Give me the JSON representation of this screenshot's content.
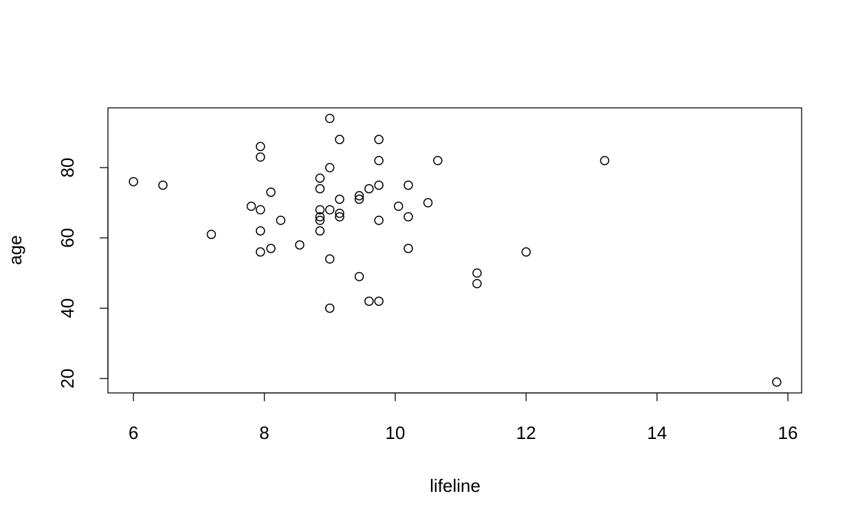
{
  "chart_data": {
    "type": "scatter",
    "xlabel": "lifeline",
    "ylabel": "age",
    "color": "#000000",
    "x": [
      6.0,
      6.45,
      7.19,
      7.8,
      7.94,
      7.94,
      7.94,
      7.94,
      7.94,
      8.1,
      8.1,
      8.25,
      8.54,
      8.85,
      8.85,
      8.85,
      8.85,
      8.85,
      8.85,
      9.0,
      9.0,
      9.0,
      9.0,
      9.0,
      9.15,
      9.15,
      9.15,
      9.15,
      9.45,
      9.45,
      9.45,
      9.6,
      9.6,
      9.75,
      9.75,
      9.75,
      9.75,
      9.75,
      10.05,
      10.2,
      10.2,
      10.2,
      10.5,
      10.65,
      11.25,
      11.25,
      12.0,
      13.2,
      15.83
    ],
    "values": [
      76,
      75,
      61,
      69,
      86,
      83,
      68,
      62,
      56,
      73,
      57,
      65,
      58,
      77,
      74,
      68,
      66,
      65,
      62,
      94,
      80,
      68,
      54,
      40,
      88,
      71,
      67,
      66,
      72,
      71,
      49,
      74,
      42,
      88,
      82,
      75,
      65,
      42,
      69,
      75,
      66,
      57,
      70,
      82,
      50,
      47,
      56,
      82,
      19
    ],
    "xlim": [
      5.61,
      16.21
    ],
    "ylim": [
      15.9,
      97.0
    ],
    "xticks": [
      6,
      8,
      10,
      12,
      14,
      16
    ],
    "yticks": [
      20,
      40,
      60,
      80
    ]
  }
}
